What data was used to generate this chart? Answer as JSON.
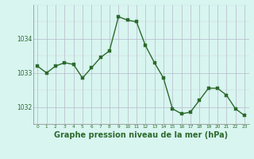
{
  "hours": [
    0,
    1,
    2,
    3,
    4,
    5,
    6,
    7,
    8,
    9,
    10,
    11,
    12,
    13,
    14,
    15,
    16,
    17,
    18,
    19,
    20,
    21,
    22,
    23
  ],
  "pressure": [
    1033.2,
    1033.0,
    1033.2,
    1033.3,
    1033.25,
    1032.85,
    1033.15,
    1033.45,
    1033.65,
    1034.65,
    1034.55,
    1034.5,
    1033.8,
    1033.3,
    1032.85,
    1031.95,
    1031.8,
    1031.85,
    1032.2,
    1032.55,
    1032.55,
    1032.35,
    1031.95,
    1031.75
  ],
  "line_color": "#2d6a2d",
  "marker_color": "#2d6a2d",
  "bg_color": "#d8f5f0",
  "grid_color_major": "#b8b8c8",
  "grid_color_minor": "#d0d0d8",
  "title": "Graphe pression niveau de la mer (hPa)",
  "title_color": "#2d6a2d",
  "yticks": [
    1032,
    1033,
    1034
  ],
  "ylim": [
    1031.5,
    1035.0
  ],
  "xlim": [
    -0.5,
    23.5
  ],
  "title_fontsize": 7.0
}
